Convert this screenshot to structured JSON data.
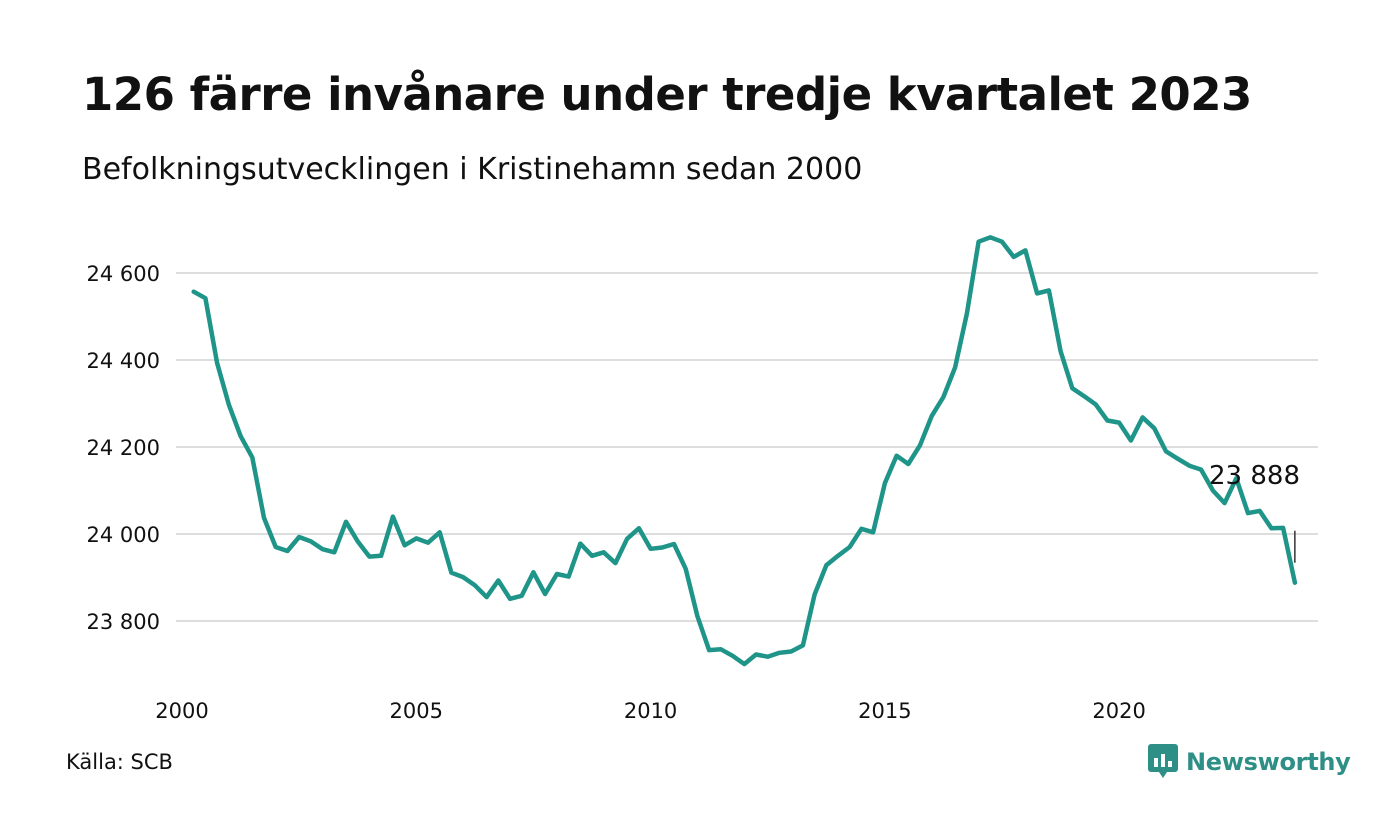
{
  "title": "126 färre invånare under tredje kvartalet 2023",
  "subtitle": "Befolkningsutvecklingen i Kristinehamn sedan 2000",
  "source": "Källa: SCB",
  "brand": {
    "name": "Newsworthy",
    "logo_icon": "newsworthy-logo-icon",
    "color": "#2e8f86"
  },
  "colors": {
    "line": "#1f9488",
    "grid": "#dddddd",
    "text": "#111111"
  },
  "chart_data": {
    "type": "line",
    "title": "126 färre invånare under tredje kvartalet 2023",
    "subtitle": "Befolkningsutvecklingen i Kristinehamn sedan 2000",
    "xlabel": "",
    "ylabel": "",
    "x_ticks": [
      2000,
      2005,
      2010,
      2015,
      2020
    ],
    "y_ticks": [
      23800,
      24000,
      24200,
      24400,
      24600
    ],
    "y_tick_labels": [
      "23 800",
      "24 000",
      "24 200",
      "24 400",
      "24 600"
    ],
    "xlim": [
      2000,
      2024.3
    ],
    "ylim": [
      23680,
      24700
    ],
    "grid": "horizontal",
    "legend": "none",
    "annotation": {
      "x": 2023.75,
      "y": 23888,
      "label": "23 888"
    },
    "series": [
      {
        "x": [
          2000.25,
          2000.5,
          2000.75,
          2001.0,
          2001.25,
          2001.5,
          2001.75,
          2002.0,
          2002.25,
          2002.5,
          2002.75,
          2003.0,
          2003.25,
          2003.5,
          2003.75,
          2004.0,
          2004.25,
          2004.5,
          2004.75,
          2005.0,
          2005.25,
          2005.5,
          2005.75,
          2006.0,
          2006.25,
          2006.5,
          2006.75,
          2007.0,
          2007.25,
          2007.5,
          2007.75,
          2008.0,
          2008.25,
          2008.5,
          2008.75,
          2009.0,
          2009.25,
          2009.5,
          2009.75,
          2010.0,
          2010.25,
          2010.5,
          2010.75,
          2011.0,
          2011.25,
          2011.5,
          2011.75,
          2012.0,
          2012.25,
          2012.5,
          2012.75,
          2013.0,
          2013.25,
          2013.5,
          2013.75,
          2014.0,
          2014.25,
          2014.5,
          2014.75,
          2015.0,
          2015.25,
          2015.5,
          2015.75,
          2016.0,
          2016.25,
          2016.5,
          2016.75,
          2017.0,
          2017.25,
          2017.5,
          2017.75,
          2018.0,
          2018.25,
          2018.5,
          2018.75,
          2019.0,
          2019.25,
          2019.5,
          2019.75,
          2020.0,
          2020.25,
          2020.5,
          2020.75,
          2021.0,
          2021.25,
          2021.5,
          2021.75,
          2022.0,
          2022.25,
          2022.5,
          2022.75,
          2023.0,
          2023.25,
          2023.5,
          2023.75
        ],
        "values": [
          24557,
          24542,
          24393,
          24297,
          24225,
          24176,
          24037,
          23970,
          23961,
          23993,
          23983,
          23965,
          23958,
          24028,
          23983,
          23948,
          23950,
          24040,
          23974,
          23990,
          23980,
          24004,
          23911,
          23901,
          23882,
          23855,
          23893,
          23851,
          23858,
          23912,
          23862,
          23908,
          23902,
          23978,
          23950,
          23958,
          23933,
          23989,
          24013,
          23966,
          23969,
          23977,
          23920,
          23811,
          23733,
          23735,
          23720,
          23701,
          23723,
          23718,
          23727,
          23730,
          23744,
          23861,
          23928,
          23950,
          23970,
          24012,
          24004,
          24117,
          24180,
          24161,
          24204,
          24271,
          24315,
          24383,
          24507,
          24672,
          24682,
          24672,
          24637,
          24652,
          24553,
          24560,
          24420,
          24335,
          24317,
          24298,
          24261,
          24256,
          24215,
          24268,
          24243,
          24190,
          24173,
          24157,
          24148,
          24100,
          24071,
          24128,
          24048,
          24053,
          24013,
          24014,
          23888
        ]
      }
    ]
  }
}
